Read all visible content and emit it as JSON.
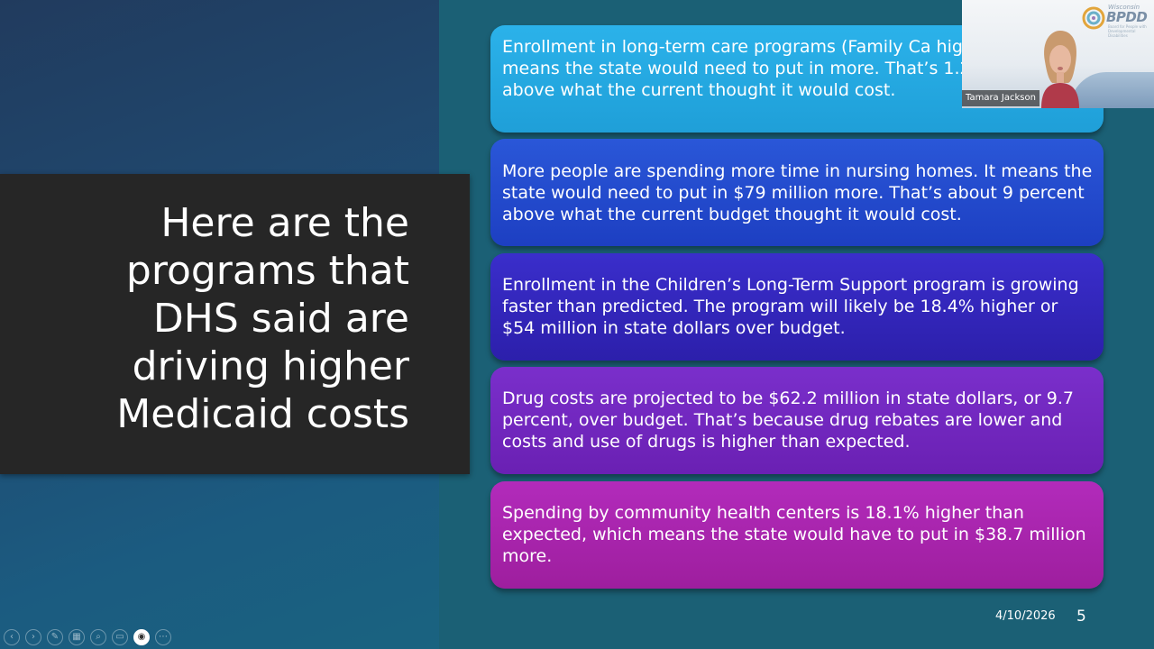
{
  "slide": {
    "title": "Here are the programs that DHS said are driving higher Medicaid costs",
    "cards": [
      "Enrollment in long-term care programs (Family Ca higher, and means the state would need to put in more. That’s 1.2 percent above what the current thought it would cost.",
      "More people are spending more time in nursing homes. It means the state would need to put in $79 million more. That’s about 9 percent above what the current budget thought it would cost.",
      "Enrollment in the Children’s Long-Term Support program is growing faster than predicted. The program will likely be 18.4% higher or $54 million in state dollars over budget.",
      "Drug costs are projected to be $62.2 million in state dollars, or 9.7 percent, over budget. That’s because drug rebates are lower and costs and use of drugs is higher than expected.",
      "Spending by community health centers is 18.1% higher than expected, which means the state would have to put in $38.7 million more."
    ],
    "date": "4/10/2026",
    "page_number": "5"
  },
  "video": {
    "participant_name": "Tamara Jackson",
    "logo_small": "Wisconsin",
    "logo_big": "BPDD",
    "logo_sub": "Board for People with Developmental Disabilities"
  },
  "toolbar": {
    "buttons": [
      {
        "name": "previous-slide-button",
        "icon": "arrow-left-icon",
        "glyph": "‹"
      },
      {
        "name": "next-slide-button",
        "icon": "arrow-right-icon",
        "glyph": "›"
      },
      {
        "name": "pen-button",
        "icon": "pen-icon",
        "glyph": "✎"
      },
      {
        "name": "all-slides-button",
        "icon": "grid-icon",
        "glyph": "▦"
      },
      {
        "name": "zoom-button",
        "icon": "magnifier-icon",
        "glyph": "⌕"
      },
      {
        "name": "subtitles-button",
        "icon": "subtitles-icon",
        "glyph": "▭"
      },
      {
        "name": "camera-button",
        "icon": "camera-icon",
        "glyph": "◉"
      },
      {
        "name": "more-options-button",
        "icon": "ellipsis-icon",
        "glyph": "⋯"
      }
    ]
  }
}
